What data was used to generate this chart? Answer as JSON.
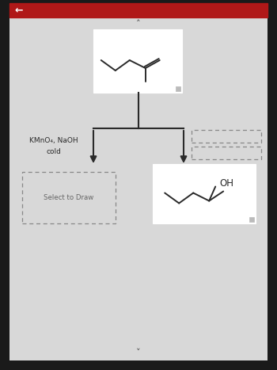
{
  "bg_outer": "#1a1a1a",
  "bg_inner": "#d8d8d8",
  "top_bar_color": "#b01818",
  "white": "#ffffff",
  "dark": "#2a2a2a",
  "reagent_text": "KMnO₄, NaOH",
  "condition_text": "cold",
  "select_text": "Select to Draw",
  "oh_text": "OH",
  "nav_up": "˄",
  "nav_down": "˅",
  "back_arrow": "←",
  "box_edge": "#bbbbbb",
  "dash_edge": "#888888",
  "icon_color": "#bbbbbb",
  "text_gray": "#666666",
  "fig_w": 3.5,
  "fig_h": 4.67,
  "dpi": 100
}
